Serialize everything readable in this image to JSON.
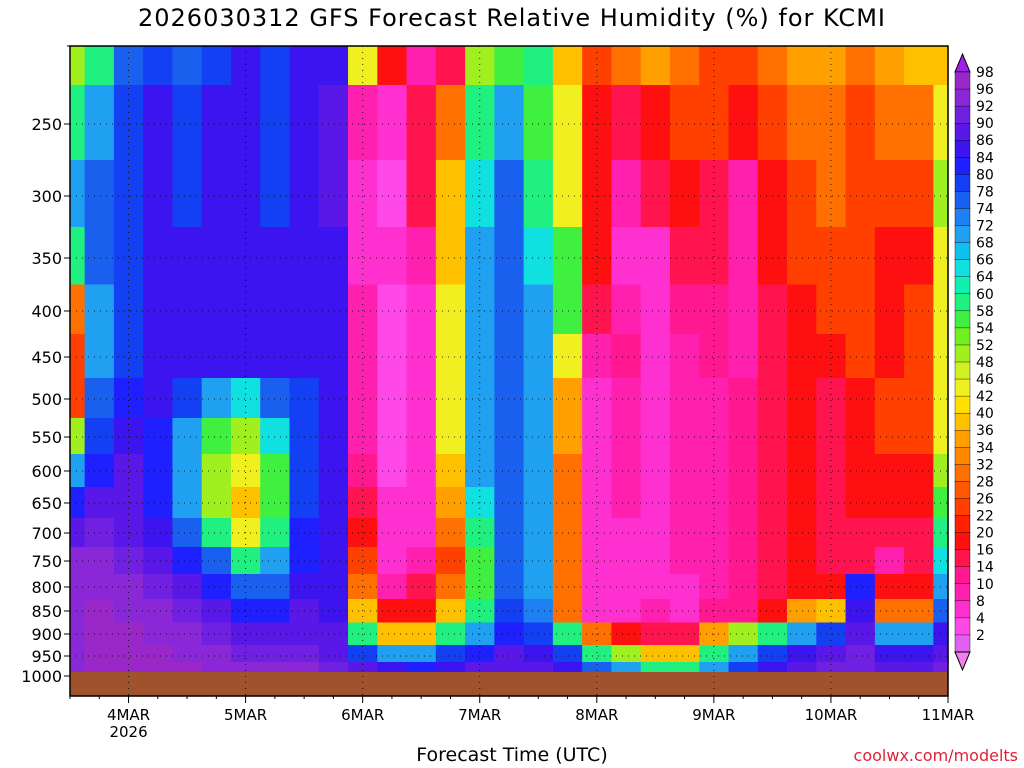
{
  "title": "2026030312  GFS Forecast Relative Humidity (%) for KCMI",
  "xlabel": "Forecast Time (UTC)",
  "credit": "coolwx.com/modelts",
  "chart_data": {
    "type": "heatmap",
    "title": "2026030312  GFS Forecast Relative Humidity (%) for KCMI",
    "xlabel": "Forecast Time (UTC)",
    "ylabel": "",
    "y_axis": "pressure (hPa), inverted, log-like scale",
    "yticks": [
      250,
      300,
      350,
      400,
      450,
      500,
      550,
      600,
      650,
      700,
      750,
      800,
      850,
      900,
      950,
      1000
    ],
    "xticks": [
      "4MAR",
      "5MAR",
      "6MAR",
      "7MAR",
      "8MAR",
      "9MAR",
      "10MAR",
      "11MAR"
    ],
    "xtick_sublabel": {
      "4MAR": "2026"
    },
    "xlim_days": [
      3.5,
      11.0
    ],
    "ylim_hpa": [
      200,
      1000
    ],
    "colorbar": {
      "labels": [
        98,
        96,
        92,
        90,
        86,
        84,
        80,
        78,
        74,
        72,
        68,
        66,
        64,
        60,
        58,
        54,
        52,
        48,
        46,
        42,
        40,
        36,
        34,
        32,
        28,
        26,
        22,
        20,
        16,
        14,
        10,
        8,
        4,
        2
      ],
      "colors": [
        "#9a28c8",
        "#8a28d8",
        "#7020e0",
        "#5a18e8",
        "#3c14f0",
        "#1e20ff",
        "#1440f4",
        "#1a60ee",
        "#1e80f2",
        "#20a0f0",
        "#10c0f0",
        "#10e0e0",
        "#10f0b0",
        "#20f080",
        "#40f040",
        "#70f020",
        "#a0f020",
        "#d0f020",
        "#f0f020",
        "#ffe000",
        "#ffc000",
        "#ffa000",
        "#ff8800",
        "#ff7000",
        "#ff5800",
        "#ff4000",
        "#ff2000",
        "#ff1010",
        "#ff1450",
        "#ff1890",
        "#ff20b0",
        "#ff30d0",
        "#ff48e8",
        "#e060f0"
      ]
    },
    "grid": true,
    "ground_color": "#a0522d",
    "humidity_field": {
      "x_days": [
        3.5,
        3.75,
        4.0,
        4.25,
        4.5,
        4.75,
        5.0,
        5.25,
        5.5,
        5.75,
        6.0,
        6.25,
        6.5,
        6.75,
        7.0,
        7.25,
        7.5,
        7.75,
        8.0,
        8.25,
        8.5,
        8.75,
        9.0,
        9.25,
        9.5,
        9.75,
        10.0,
        10.25,
        10.5,
        10.75,
        11.0
      ],
      "y_hpa": [
        200,
        250,
        300,
        350,
        400,
        450,
        500,
        550,
        600,
        650,
        700,
        750,
        800,
        850,
        900,
        950,
        980
      ],
      "values": [
        [
          50,
          60,
          75,
          80,
          75,
          80,
          85,
          80,
          85,
          85,
          45,
          20,
          10,
          15,
          50,
          55,
          60,
          40,
          25,
          30,
          35,
          30,
          25,
          25,
          30,
          35,
          35,
          30,
          35,
          40,
          40
        ],
        [
          60,
          70,
          80,
          85,
          80,
          85,
          85,
          80,
          85,
          88,
          10,
          5,
          15,
          30,
          60,
          70,
          55,
          45,
          20,
          15,
          20,
          25,
          25,
          20,
          25,
          30,
          30,
          25,
          30,
          30,
          45
        ],
        [
          70,
          75,
          80,
          85,
          80,
          85,
          85,
          80,
          85,
          88,
          8,
          4,
          15,
          40,
          65,
          75,
          60,
          45,
          20,
          10,
          15,
          20,
          15,
          10,
          20,
          25,
          30,
          25,
          25,
          25,
          50
        ],
        [
          60,
          75,
          80,
          85,
          85,
          85,
          85,
          85,
          85,
          86,
          8,
          5,
          10,
          40,
          70,
          75,
          65,
          55,
          20,
          8,
          8,
          15,
          15,
          10,
          20,
          25,
          25,
          25,
          20,
          20,
          45
        ],
        [
          30,
          70,
          80,
          85,
          85,
          85,
          85,
          85,
          85,
          86,
          10,
          4,
          8,
          45,
          70,
          75,
          70,
          55,
          15,
          10,
          8,
          12,
          12,
          10,
          15,
          20,
          25,
          25,
          20,
          25,
          45
        ],
        [
          25,
          70,
          80,
          85,
          85,
          85,
          85,
          85,
          85,
          86,
          10,
          4,
          8,
          45,
          70,
          75,
          70,
          45,
          10,
          12,
          8,
          10,
          12,
          10,
          15,
          20,
          20,
          25,
          20,
          25,
          45
        ],
        [
          25,
          75,
          84,
          86,
          80,
          70,
          65,
          75,
          80,
          86,
          10,
          4,
          8,
          45,
          70,
          75,
          70,
          35,
          8,
          10,
          8,
          10,
          10,
          12,
          15,
          20,
          15,
          20,
          25,
          25,
          45
        ],
        [
          50,
          80,
          86,
          84,
          70,
          55,
          50,
          65,
          80,
          86,
          10,
          4,
          8,
          45,
          70,
          75,
          70,
          35,
          8,
          10,
          8,
          10,
          10,
          12,
          15,
          20,
          15,
          20,
          25,
          25,
          45
        ],
        [
          70,
          84,
          88,
          84,
          70,
          50,
          45,
          55,
          80,
          86,
          12,
          4,
          8,
          40,
          70,
          75,
          70,
          30,
          8,
          10,
          8,
          10,
          10,
          12,
          15,
          20,
          15,
          20,
          20,
          20,
          50
        ],
        [
          84,
          88,
          88,
          84,
          70,
          50,
          40,
          55,
          80,
          86,
          15,
          5,
          8,
          35,
          65,
          75,
          72,
          30,
          8,
          10,
          8,
          10,
          10,
          12,
          15,
          20,
          15,
          20,
          20,
          20,
          55
        ],
        [
          90,
          92,
          90,
          86,
          75,
          60,
          45,
          60,
          82,
          86,
          20,
          5,
          8,
          30,
          60,
          75,
          72,
          30,
          8,
          8,
          8,
          10,
          10,
          12,
          15,
          20,
          15,
          15,
          15,
          15,
          60
        ],
        [
          94,
          94,
          92,
          88,
          82,
          75,
          60,
          70,
          84,
          86,
          25,
          6,
          10,
          25,
          55,
          75,
          72,
          30,
          8,
          8,
          8,
          10,
          10,
          12,
          15,
          20,
          15,
          15,
          10,
          15,
          65
        ],
        [
          96,
          96,
          94,
          92,
          88,
          82,
          75,
          78,
          86,
          86,
          30,
          10,
          15,
          30,
          55,
          75,
          72,
          30,
          8,
          8,
          8,
          8,
          10,
          12,
          15,
          20,
          20,
          84,
          20,
          20,
          70
        ],
        [
          96,
          98,
          96,
          94,
          92,
          88,
          84,
          84,
          88,
          86,
          40,
          20,
          20,
          40,
          60,
          80,
          74,
          30,
          8,
          8,
          10,
          8,
          12,
          12,
          20,
          35,
          40,
          86,
          30,
          30,
          78
        ],
        [
          96,
          98,
          98,
          96,
          94,
          92,
          88,
          88,
          90,
          88,
          60,
          40,
          40,
          60,
          70,
          84,
          80,
          60,
          30,
          20,
          15,
          15,
          35,
          50,
          60,
          70,
          80,
          90,
          70,
          70,
          86
        ],
        [
          96,
          98,
          98,
          98,
          96,
          94,
          92,
          92,
          92,
          90,
          80,
          70,
          70,
          80,
          84,
          88,
          86,
          80,
          60,
          50,
          40,
          40,
          60,
          70,
          80,
          86,
          90,
          92,
          86,
          86,
          90
        ],
        [
          96,
          98,
          98,
          98,
          98,
          96,
          94,
          94,
          94,
          92,
          88,
          86,
          84,
          86,
          88,
          90,
          88,
          86,
          75,
          70,
          60,
          60,
          70,
          80,
          86,
          90,
          92,
          92,
          90,
          90,
          92
        ]
      ]
    }
  }
}
